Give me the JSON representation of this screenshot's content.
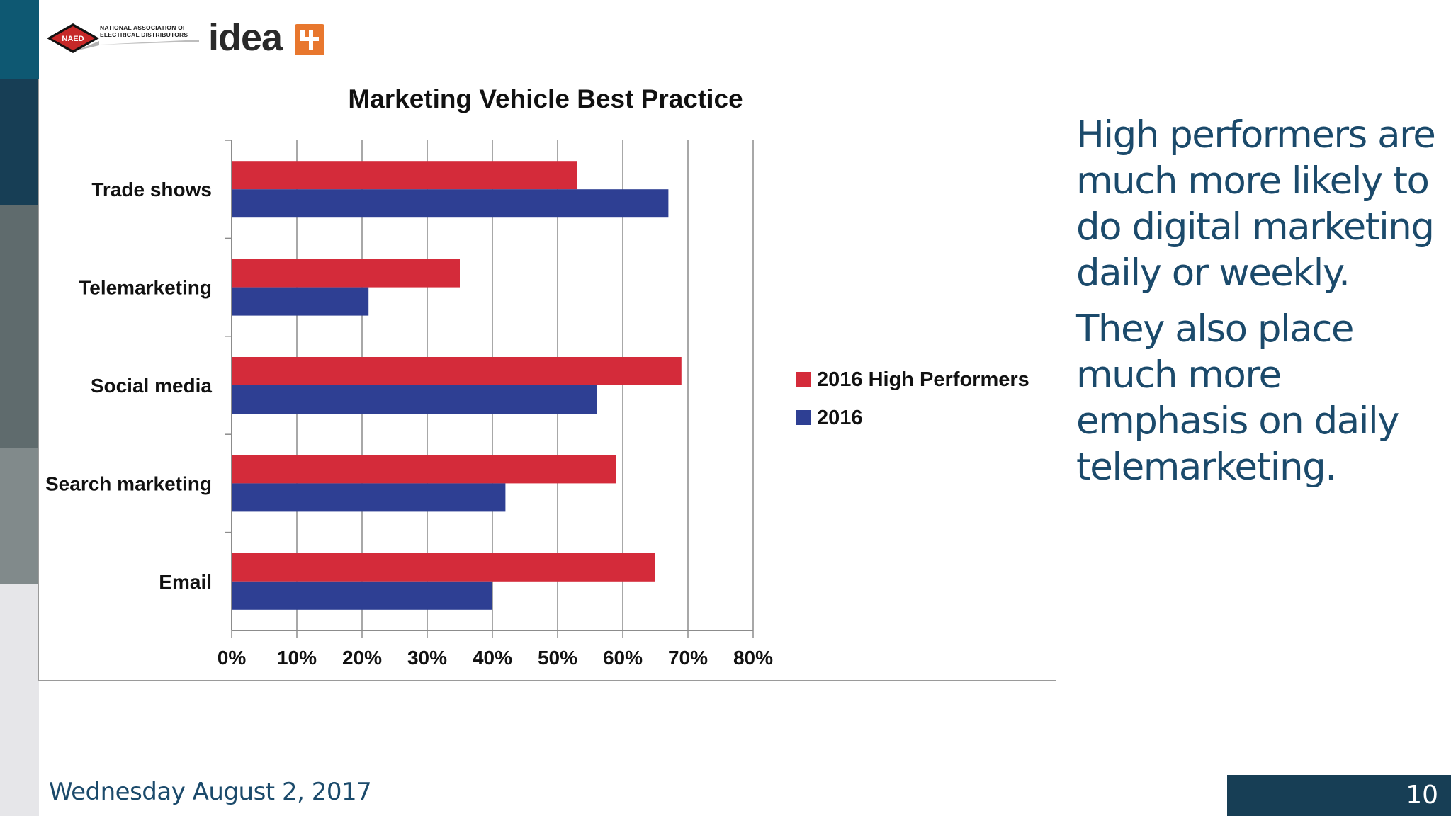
{
  "header": {
    "naed_line1": "NATIONAL ASSOCIATION OF",
    "naed_line2": "ELECTRICAL DISTRIBUTORS",
    "naed_badge": "NAED",
    "idea_word": "idea"
  },
  "chart_data": {
    "type": "bar",
    "orientation": "horizontal",
    "title": "Marketing Vehicle Best Practice",
    "categories": [
      "Trade shows",
      "Telemarketing",
      "Social media",
      "Search marketing",
      "Email"
    ],
    "series": [
      {
        "name": "2016 High Performers",
        "color": "#d42b3a",
        "values": [
          53,
          35,
          69,
          59,
          65
        ]
      },
      {
        "name": "2016",
        "color": "#2e3f93",
        "values": [
          67,
          21,
          56,
          42,
          40
        ]
      }
    ],
    "xticks": [
      "0%",
      "10%",
      "20%",
      "30%",
      "40%",
      "50%",
      "60%",
      "70%",
      "80%"
    ],
    "xlim": [
      0,
      80
    ],
    "grid": true,
    "legend_position": "right"
  },
  "side_text": {
    "paragraph1": "High performers are much more likely to do digital marketing daily or weekly.",
    "paragraph2": "They also place much more emphasis on daily telemarketing."
  },
  "footer": {
    "date": "Wednesday August 2, 2017",
    "page_number": "10"
  },
  "colors": {
    "brand_dark": "#173e55",
    "brand_teal": "#0e5872",
    "text_blue": "#1b4a6b",
    "accent_orange": "#e8772e"
  }
}
